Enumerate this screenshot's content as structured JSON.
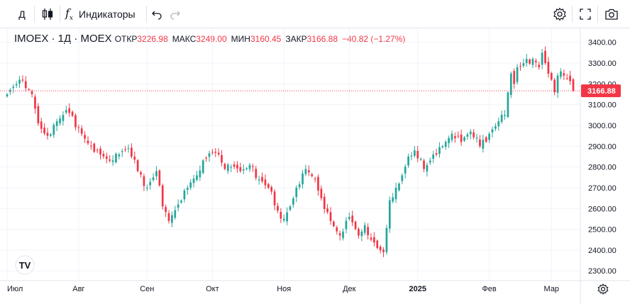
{
  "toolbar": {
    "interval": "Д",
    "indicators_label": "Индикаторы"
  },
  "legend": {
    "symbol": "IMOEX · 1Д · MOEX",
    "open_label": "ОТКР",
    "open": "3226.98",
    "high_label": "МАКС",
    "high": "3249.00",
    "low_label": "МИН",
    "low": "3160.45",
    "close_label": "ЗАКР",
    "close": "3166.88",
    "change": "−40.82 (−1.27%)"
  },
  "colors": {
    "up": "#26a69a",
    "down": "#f23645",
    "grid": "#f0f3fa",
    "text": "#131722"
  },
  "chart_data": {
    "type": "candlestick",
    "title": "",
    "last_price": 3166.88,
    "last_price_label": "3166.88",
    "ylim": [
      2270,
      3440
    ],
    "yticks": [
      2300,
      2400,
      2500,
      2600,
      2700,
      2800,
      2900,
      3000,
      3100,
      3200,
      3300,
      3400
    ],
    "ytick_labels": [
      "2300.00",
      "2400.00",
      "2500.00",
      "2600.00",
      "2700.00",
      "2800.00",
      "2900.00",
      "3000.00",
      "3100.00",
      "3200.00",
      "3300.00",
      "3400.00"
    ],
    "xticks": [
      {
        "label": "Июл",
        "index": 0,
        "bold": false
      },
      {
        "label": "Авг",
        "index": 23,
        "bold": false
      },
      {
        "label": "Сен",
        "index": 45,
        "bold": false
      },
      {
        "label": "Окт",
        "index": 66,
        "bold": false
      },
      {
        "label": "Ноя",
        "index": 89,
        "bold": false
      },
      {
        "label": "Дек",
        "index": 110,
        "bold": false
      },
      {
        "label": "2025",
        "index": 132,
        "bold": true
      },
      {
        "label": "Фев",
        "index": 155,
        "bold": false
      },
      {
        "label": "Мар",
        "index": 175,
        "bold": false
      }
    ],
    "grid": true,
    "x_count": 183,
    "anchor_index": [
      0,
      4,
      6,
      8,
      10,
      13,
      16,
      18,
      20,
      24,
      27,
      30,
      33,
      36,
      39,
      42,
      45,
      48,
      50,
      52,
      55,
      58,
      61,
      64,
      66,
      68,
      70,
      72,
      75,
      78,
      81,
      84,
      87,
      89,
      91,
      93,
      96,
      99,
      101,
      104,
      107,
      110,
      113,
      115,
      117,
      119,
      121,
      123,
      125,
      126,
      127,
      129,
      131,
      133,
      134,
      137,
      140,
      143,
      146,
      149,
      152,
      155,
      158,
      160,
      162,
      163,
      164,
      166,
      169,
      171,
      172,
      173,
      175,
      176,
      177,
      178,
      180,
      182
    ],
    "anchor_close": [
      3150,
      3220,
      3180,
      3150,
      3010,
      2950,
      3020,
      3050,
      3060,
      2960,
      2900,
      2860,
      2830,
      2860,
      2890,
      2780,
      2700,
      2780,
      2610,
      2540,
      2620,
      2700,
      2760,
      2840,
      2870,
      2860,
      2790,
      2800,
      2780,
      2810,
      2740,
      2700,
      2590,
      2550,
      2610,
      2700,
      2790,
      2740,
      2650,
      2540,
      2470,
      2560,
      2470,
      2520,
      2450,
      2410,
      2390,
      2640,
      2700,
      2720,
      2760,
      2850,
      2880,
      2840,
      2790,
      2860,
      2900,
      2960,
      2920,
      2970,
      2900,
      2960,
      3020,
      3050,
      3250,
      3200,
      3280,
      3300,
      3320,
      3280,
      3350,
      3300,
      3220,
      3160,
      3240,
      3260,
      3227,
      3167
    ]
  }
}
